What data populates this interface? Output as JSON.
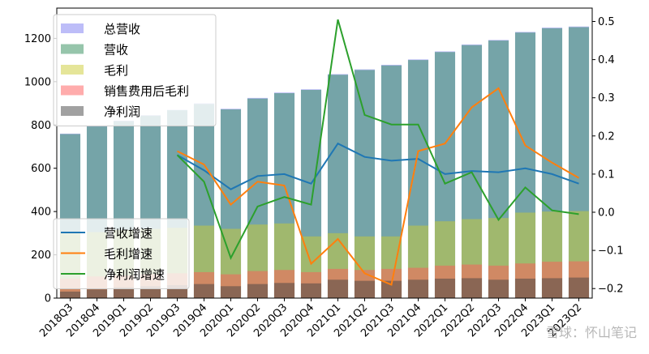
{
  "chart_data": {
    "type": "bar",
    "categories": [
      "2018Q3",
      "2018Q4",
      "2019Q1",
      "2019Q2",
      "2019Q3",
      "2019Q4",
      "2020Q1",
      "2020Q2",
      "2020Q3",
      "2020Q4",
      "2021Q1",
      "2021Q2",
      "2021Q3",
      "2021Q4",
      "2022Q1",
      "2022Q2",
      "2022Q3",
      "2022Q4",
      "2023Q1",
      "2023Q2"
    ],
    "bar_series": [
      {
        "name": "总营收",
        "color": "#7b7bf2",
        "values": [
          760,
          795,
          820,
          845,
          870,
          900,
          875,
          925,
          950,
          965,
          1035,
          1057,
          1078,
          1103,
          1140,
          1172,
          1193,
          1230,
          1250,
          1255
        ]
      },
      {
        "name": "营收",
        "color": "#2e8b57",
        "values": [
          758,
          793,
          818,
          843,
          868,
          897,
          872,
          922,
          947,
          962,
          1032,
          1054,
          1075,
          1100,
          1137,
          1169,
          1190,
          1227,
          1247,
          1252
        ]
      },
      {
        "name": "毛利",
        "color": "#cccc33",
        "values": [
          300,
          305,
          315,
          320,
          325,
          335,
          320,
          340,
          345,
          285,
          300,
          285,
          285,
          335,
          355,
          365,
          370,
          395,
          400,
          402
        ]
      },
      {
        "name": "销售费用后毛利",
        "color": "#ff5a5a",
        "values": [
          90,
          100,
          105,
          110,
          115,
          120,
          110,
          125,
          130,
          120,
          135,
          130,
          135,
          140,
          150,
          155,
          150,
          160,
          168,
          170
        ]
      },
      {
        "name": "净利润",
        "color": "#444444",
        "values": [
          30,
          40,
          50,
          55,
          60,
          65,
          55,
          65,
          70,
          68,
          85,
          80,
          80,
          85,
          90,
          92,
          85,
          90,
          92,
          95
        ]
      }
    ],
    "line_series": [
      {
        "name": "营收增速",
        "color": "#1f77b4",
        "x_start": 4,
        "values": [
          0.15,
          0.11,
          0.06,
          0.095,
          0.1,
          0.075,
          0.18,
          0.145,
          0.135,
          0.14,
          0.1,
          0.108,
          0.105,
          0.115,
          0.1,
          0.075
        ]
      },
      {
        "name": "毛利增速",
        "color": "#ff7f0e",
        "x_start": 4,
        "values": [
          0.16,
          0.125,
          0.02,
          0.08,
          0.07,
          -0.135,
          -0.07,
          -0.16,
          -0.19,
          0.16,
          0.18,
          0.275,
          0.325,
          0.175,
          0.13,
          0.09
        ]
      },
      {
        "name": "净利润增速",
        "color": "#2ca02c",
        "x_start": 4,
        "values": [
          0.15,
          0.08,
          -0.12,
          0.015,
          0.04,
          0.02,
          0.505,
          0.255,
          0.23,
          0.23,
          0.075,
          0.105,
          -0.02,
          0.065,
          0.005,
          -0.005
        ]
      }
    ],
    "left_axis": {
      "ylim": [
        0,
        1340
      ],
      "ticks": [
        0,
        200,
        400,
        600,
        800,
        1000,
        1200
      ]
    },
    "right_axis": {
      "ylim": [
        -0.225,
        0.535
      ],
      "ticks": [
        -0.2,
        -0.1,
        0.0,
        0.1,
        0.2,
        0.3,
        0.4,
        0.5
      ],
      "tick_labels": [
        "−0.2",
        "−0.1",
        "0.0",
        "0.1",
        "0.2",
        "0.3",
        "0.4",
        "0.5"
      ]
    },
    "legend_bars_placement": "top-left",
    "legend_lines_placement": "bottom-left",
    "grid": false
  },
  "watermark": "雪球：怀山笔记"
}
